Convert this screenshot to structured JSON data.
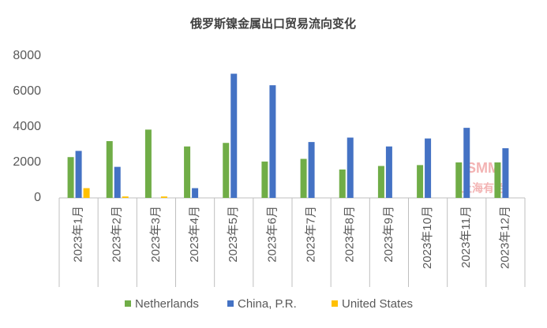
{
  "chart_data": {
    "type": "bar",
    "title": "俄罗斯镍金属出口贸易流向变化",
    "categories": [
      "2023年1月",
      "2023年2月",
      "2023年3月",
      "2023年4月",
      "2023年5月",
      "2023年6月",
      "2023年7月",
      "2023年8月",
      "2023年9月",
      "2023年10月",
      "2023年11月",
      "2023年12月"
    ],
    "series": [
      {
        "name": "Netherlands",
        "color": "#70ad47",
        "values": [
          2300,
          3200,
          3850,
          2900,
          3100,
          2050,
          2200,
          1600,
          1800,
          1850,
          2000,
          2000
        ]
      },
      {
        "name": "China, P.R.",
        "color": "#4472c4",
        "values": [
          2650,
          1750,
          null,
          550,
          7000,
          6350,
          3150,
          3400,
          2900,
          3350,
          3950,
          2800
        ]
      },
      {
        "name": "United States",
        "color": "#ffc000",
        "values": [
          550,
          80,
          80,
          null,
          null,
          null,
          null,
          null,
          null,
          null,
          null,
          null
        ]
      }
    ],
    "ylim": [
      0,
      8000
    ],
    "yticks": [
      0,
      2000,
      4000,
      6000,
      8000
    ],
    "grid": false,
    "legend": "bottom",
    "watermark": {
      "logo": "SMM",
      "text": "上海有色"
    }
  }
}
